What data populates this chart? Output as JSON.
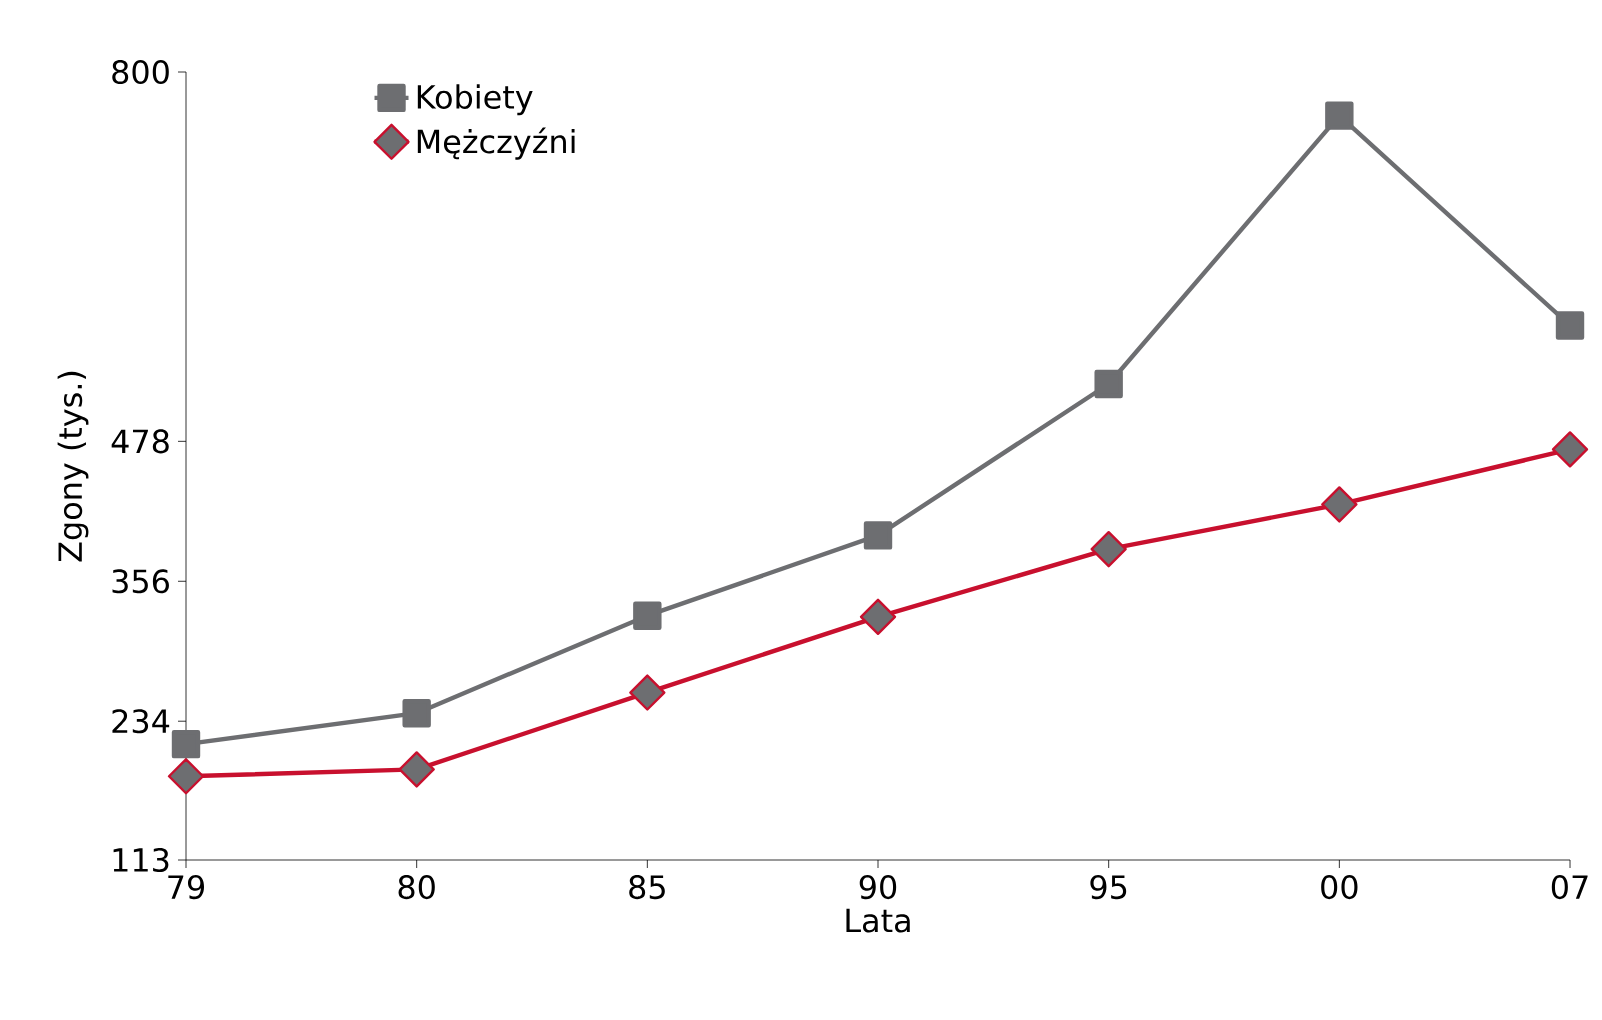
{
  "chart_data": {
    "type": "line",
    "xlabel": "Lata",
    "ylabel": "Zgony (tys.)",
    "categories": [
      "79",
      "80",
      "85",
      "90",
      "95",
      "00",
      "07"
    ],
    "series": [
      {
        "name": "Kobiety",
        "color": "#6d6e71",
        "marker": "square",
        "values": [
          214,
          241,
          326,
          396,
          528,
          762,
          579
        ]
      },
      {
        "name": "Mężczyźni",
        "color": "#c8102e",
        "marker": "diamond",
        "values": [
          186,
          192,
          259,
          325,
          384,
          423,
          471
        ]
      }
    ],
    "ylim": [
      113,
      800
    ],
    "yticks": [
      113,
      234,
      356,
      478,
      800
    ],
    "legend": "top left",
    "grid": false,
    "line_style": "solid"
  }
}
